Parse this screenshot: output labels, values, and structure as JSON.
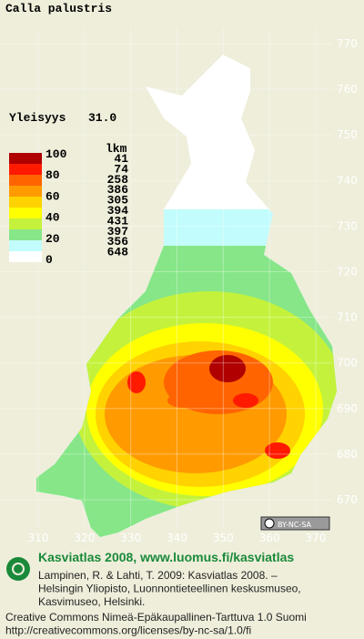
{
  "title": "Calla palustris",
  "frequency": {
    "label": "Yleisyys",
    "value": "31.0"
  },
  "legend": {
    "scale": [
      100,
      80,
      60,
      40,
      20,
      0
    ],
    "count_header": "lkm",
    "counts": [
      41,
      74,
      258,
      386,
      305,
      394,
      431,
      397,
      356,
      648
    ],
    "colors": [
      "#b00000",
      "#ff1a00",
      "#ff6400",
      "#ff9a00",
      "#ffd200",
      "#ffff00",
      "#c4f23c",
      "#86e688",
      "#c2fcfc",
      "#ffffff"
    ]
  },
  "grid": {
    "y_ticks": [
      770,
      760,
      750,
      740,
      730,
      720,
      710,
      700,
      690,
      680,
      670
    ],
    "x_ticks": [
      310,
      320,
      330,
      340,
      350,
      360,
      370
    ]
  },
  "license_badge": "BY-NC-SA",
  "footer": {
    "heading": "Kasviatlas 2008, www.luomus.fi/kasviatlas",
    "citation": [
      "Lampinen, R. & Lahti, T. 2009: Kasviatlas 2008. –",
      "Helsingin Yliopisto, Luonnontieteellinen keskusmuseo,",
      "Kasvimuseo, Helsinki."
    ],
    "license": [
      "Creative Commons Nimeä-Epäkaupallinen-Tarttuva 1.0 Suomi",
      "http://creativecommons.org/licenses/by-nc-sa/1.0/fi"
    ]
  }
}
